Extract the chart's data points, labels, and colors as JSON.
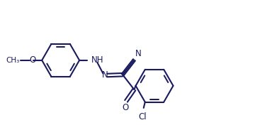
{
  "bg_color": "#ffffff",
  "line_color": "#1a1a5e",
  "line_width": 1.5,
  "font_size": 8.5,
  "figsize": [
    3.91,
    1.9
  ],
  "dpi": 100,
  "xlim": [
    0.0,
    9.5
  ],
  "ylim": [
    0.8,
    5.4
  ]
}
